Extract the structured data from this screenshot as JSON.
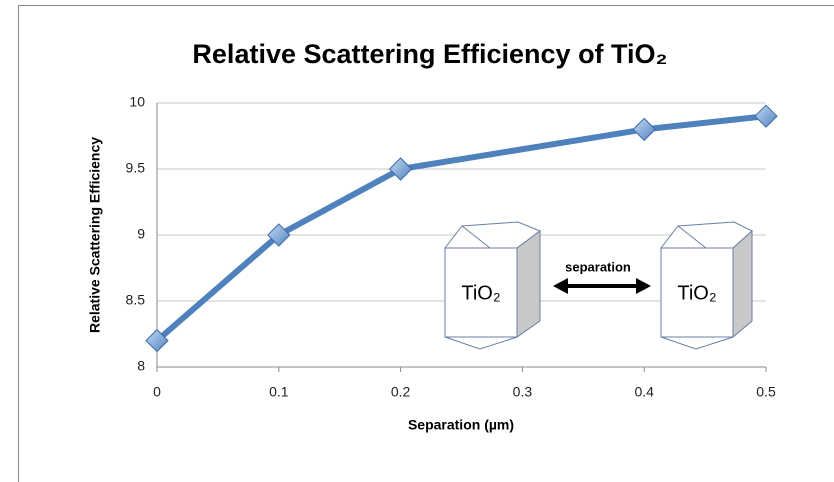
{
  "chart_data": {
    "type": "line",
    "title": "Relative Scattering Efficiency of TiO₂",
    "x_label": "Separation (µm)",
    "y_label": "Relative Scattering Efficiency",
    "x": [
      0,
      0.1,
      0.2,
      0.4,
      0.5
    ],
    "values": [
      8.2,
      9.0,
      9.5,
      9.8,
      9.9
    ],
    "color": "#4f81bd",
    "xlim": [
      0,
      0.5
    ],
    "xticks": [
      0,
      0.1,
      0.2,
      0.3,
      0.4,
      0.5
    ],
    "ylim": [
      8,
      10
    ],
    "yticks": [
      8,
      8.5,
      9,
      9.5,
      10
    ],
    "grid": true,
    "annotations": [
      "TiO₂",
      "separation",
      "TiO₂"
    ]
  }
}
